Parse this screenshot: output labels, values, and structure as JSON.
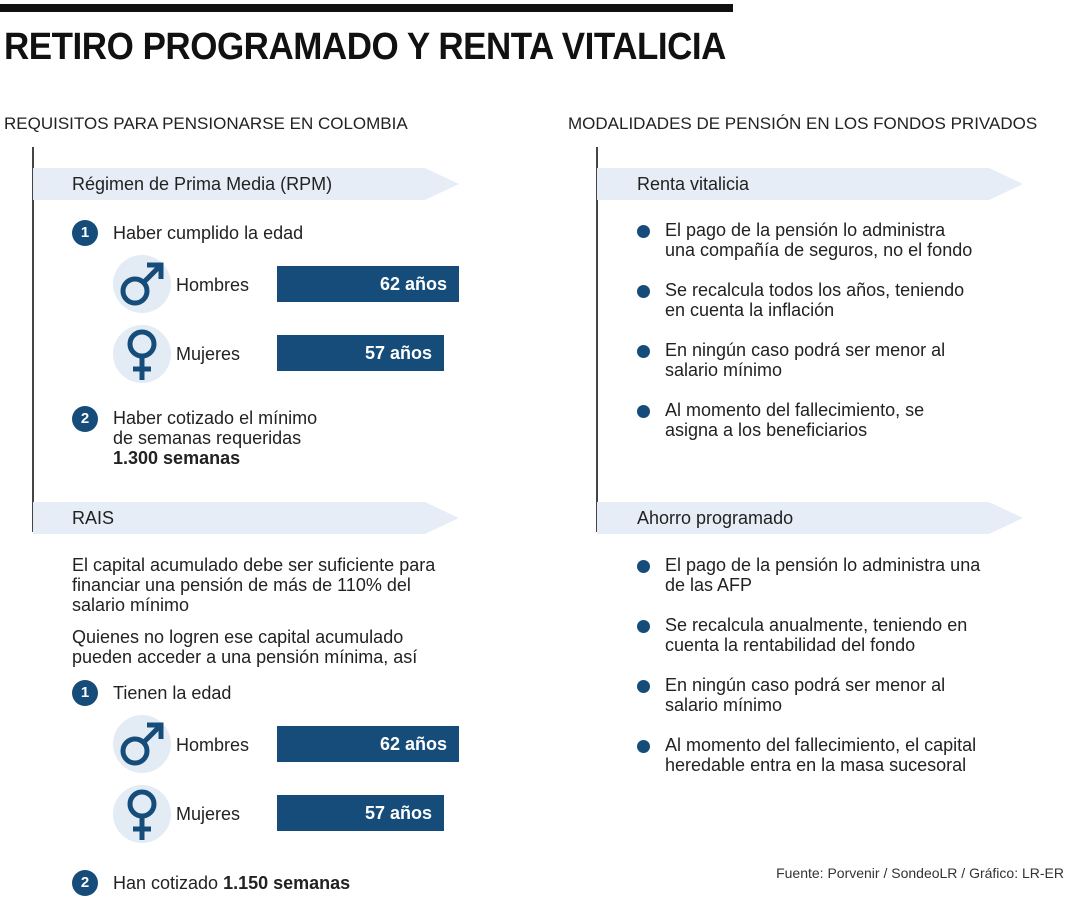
{
  "title": "RETIRO PROGRAMADO Y RENTA VITALICIA",
  "left": {
    "heading": "REQUISITOS PARA PENSIONARSE EN COLOMBIA",
    "rpm": {
      "banner": "Régimen de Prima Media (RPM)",
      "step1": {
        "num": "1",
        "text": "Haber cumplido la edad"
      },
      "men": {
        "label": "Hombres",
        "value": "62 años",
        "icon": "male-symbol-icon"
      },
      "women": {
        "label": "Mujeres",
        "value": "57 años",
        "icon": "female-symbol-icon"
      },
      "step2": {
        "num": "2",
        "line1": "Haber cotizado el mínimo",
        "line2": "de semanas requeridas",
        "bold": "1.300 semanas"
      }
    },
    "rais": {
      "banner": "RAIS",
      "para1": {
        "l1": "El capital acumulado debe ser suficiente para",
        "l2": "financiar una pensión de más de 110% del",
        "l3": "salario mínimo"
      },
      "para2": {
        "l1": "Quienes no logren ese capital acumulado",
        "l2": "pueden acceder a una pensión mínima, así"
      },
      "step1": {
        "num": "1",
        "text": "Tienen la edad"
      },
      "men": {
        "label": "Hombres",
        "value": "62 años"
      },
      "women": {
        "label": "Mujeres",
        "value": "57 años"
      },
      "step2": {
        "num": "2",
        "text": "Han cotizado ",
        "bold": "1.150 semanas"
      }
    }
  },
  "right": {
    "heading": "MODALIDADES DE PENSIÓN EN LOS FONDOS PRIVADOS",
    "renta": {
      "banner": "Renta vitalicia",
      "bullets": [
        {
          "l1": "El pago de la pensión lo administra",
          "l2": "una compañía de seguros, no el fondo"
        },
        {
          "l1": "Se recalcula todos los años, teniendo",
          "l2": "en cuenta la inflación"
        },
        {
          "l1": "En ningún caso podrá ser menor al",
          "l2": "salario mínimo"
        },
        {
          "l1": "Al momento del fallecimiento, se",
          "l2": "asigna a los beneficiarios"
        }
      ]
    },
    "ahorro": {
      "banner": "Ahorro programado",
      "bullets": [
        {
          "l1": "El pago de la pensión lo administra una",
          "l2": "de las AFP"
        },
        {
          "l1": "Se recalcula anualmente, teniendo en",
          "l2": "cuenta la rentabilidad del fondo"
        },
        {
          "l1": "En ningún caso podrá ser menor al",
          "l2": "salario mínimo"
        },
        {
          "l1": "Al momento del fallecimiento, el capital",
          "l2": "heredable entra en la masa sucesoral"
        }
      ]
    }
  },
  "source": "Fuente: Porvenir / SondeoLR / Gráfico: LR-ER",
  "colors": {
    "accent": "#154c79",
    "banner": "#e6edf6",
    "symbol_bg": "#e3ebf5"
  }
}
